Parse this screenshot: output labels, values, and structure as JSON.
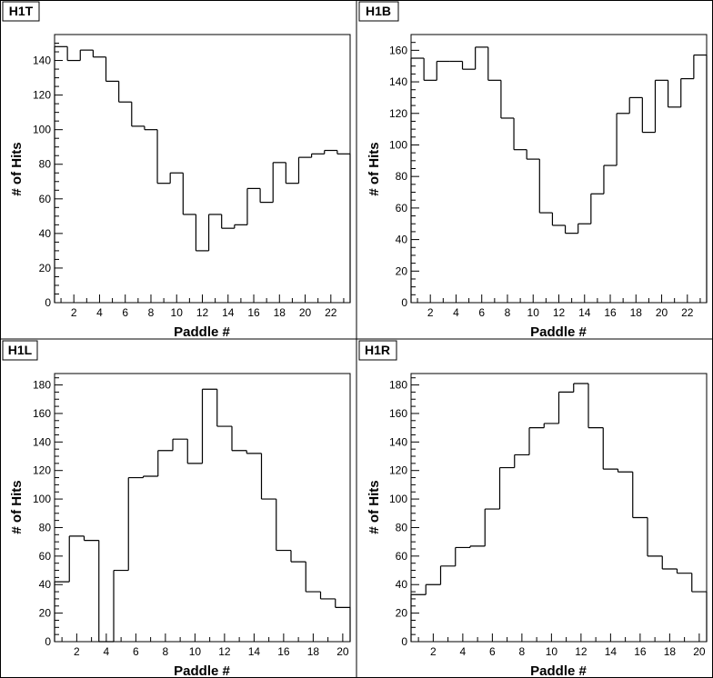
{
  "chart_data": [
    {
      "type": "bar",
      "title": "H1T",
      "xlabel": "Paddle #",
      "ylabel": "# of Hits",
      "x": [
        1,
        2,
        3,
        4,
        5,
        6,
        7,
        8,
        9,
        10,
        11,
        12,
        13,
        14,
        15,
        16,
        17,
        18,
        19,
        20,
        21,
        22,
        23
      ],
      "values": [
        148,
        140,
        146,
        142,
        128,
        116,
        102,
        100,
        69,
        75,
        51,
        30,
        51,
        43,
        45,
        66,
        58,
        81,
        69,
        84,
        86,
        88,
        86
      ],
      "xlim": [
        0.5,
        23.5
      ],
      "ylim": [
        0,
        155
      ],
      "xticks": [
        2,
        4,
        6,
        8,
        10,
        12,
        14,
        16,
        18,
        20,
        22
      ],
      "yticks": [
        0,
        20,
        40,
        60,
        80,
        100,
        120,
        140
      ],
      "grid": false
    },
    {
      "type": "bar",
      "title": "H1B",
      "xlabel": "Paddle #",
      "ylabel": "# of Hits",
      "x": [
        1,
        2,
        3,
        4,
        5,
        6,
        7,
        8,
        9,
        10,
        11,
        12,
        13,
        14,
        15,
        16,
        17,
        18,
        19,
        20,
        21,
        22,
        23
      ],
      "values": [
        155,
        141,
        153,
        153,
        148,
        162,
        141,
        117,
        97,
        91,
        57,
        49,
        44,
        50,
        69,
        87,
        120,
        130,
        108,
        141,
        124,
        142,
        157
      ],
      "xlim": [
        0.5,
        23.5
      ],
      "ylim": [
        0,
        170
      ],
      "xticks": [
        2,
        4,
        6,
        8,
        10,
        12,
        14,
        16,
        18,
        20,
        22
      ],
      "yticks": [
        0,
        20,
        40,
        60,
        80,
        100,
        120,
        140,
        160
      ],
      "grid": false
    },
    {
      "type": "bar",
      "title": "H1L",
      "xlabel": "Paddle #",
      "ylabel": "# of Hits",
      "x": [
        1,
        2,
        3,
        4,
        5,
        6,
        7,
        8,
        9,
        10,
        11,
        12,
        13,
        14,
        15,
        16,
        17,
        18,
        19,
        20
      ],
      "values": [
        42,
        74,
        71,
        0,
        50,
        115,
        116,
        134,
        142,
        125,
        177,
        151,
        134,
        132,
        100,
        64,
        56,
        35,
        30,
        24
      ],
      "xlim": [
        0.5,
        20.5
      ],
      "ylim": [
        0,
        188
      ],
      "xticks": [
        2,
        4,
        6,
        8,
        10,
        12,
        14,
        16,
        18,
        20
      ],
      "yticks": [
        0,
        20,
        40,
        60,
        80,
        100,
        120,
        140,
        160,
        180
      ],
      "grid": false
    },
    {
      "type": "bar",
      "title": "H1R",
      "xlabel": "Paddle #",
      "ylabel": "# of Hits",
      "x": [
        1,
        2,
        3,
        4,
        5,
        6,
        7,
        8,
        9,
        10,
        11,
        12,
        13,
        14,
        15,
        16,
        17,
        18,
        19,
        20
      ],
      "values": [
        33,
        40,
        53,
        66,
        67,
        93,
        122,
        131,
        150,
        153,
        175,
        181,
        150,
        121,
        119,
        87,
        60,
        51,
        48,
        35
      ],
      "xlim": [
        0.5,
        20.5
      ],
      "ylim": [
        0,
        188
      ],
      "xticks": [
        2,
        4,
        6,
        8,
        10,
        12,
        14,
        16,
        18,
        20
      ],
      "yticks": [
        0,
        20,
        40,
        60,
        80,
        100,
        120,
        140,
        160,
        180
      ],
      "grid": false
    }
  ]
}
